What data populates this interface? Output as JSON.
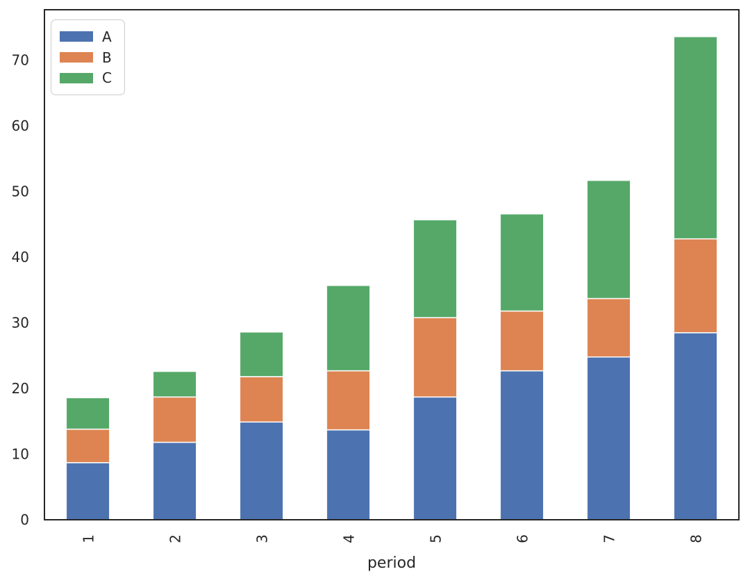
{
  "figure": {
    "background": "#ffffff",
    "spine_color": "#262626",
    "text_color": "#262626",
    "bar_edge_color": "rgba(255,255,255,0.9)"
  },
  "chart_data": {
    "type": "bar",
    "stacked": true,
    "title": "",
    "xlabel": "period",
    "ylabel": "",
    "categories": [
      "1",
      "2",
      "3",
      "4",
      "5",
      "6",
      "7",
      "8"
    ],
    "series": [
      {
        "name": "A",
        "color": "#4c72b0",
        "values": [
          8.7,
          11.8,
          14.9,
          13.7,
          18.7,
          22.7,
          24.8,
          28.5
        ]
      },
      {
        "name": "B",
        "color": "#dd8452",
        "values": [
          5.1,
          6.9,
          6.9,
          9.0,
          12.1,
          9.1,
          8.9,
          14.3
        ]
      },
      {
        "name": "C",
        "color": "#55a868",
        "values": [
          4.8,
          3.9,
          6.8,
          13.0,
          14.9,
          14.8,
          18.0,
          30.8
        ]
      }
    ],
    "totals": [
      18.6,
      22.6,
      28.6,
      35.7,
      45.7,
      46.6,
      51.7,
      73.6
    ],
    "ylim": [
      0,
      77.7
    ],
    "yticks": [
      0,
      10,
      20,
      30,
      40,
      50,
      60,
      70
    ],
    "xtick_rotation": 90,
    "grid": false,
    "legend": {
      "position": "upper-left",
      "labels": [
        "A",
        "B",
        "C"
      ]
    }
  }
}
